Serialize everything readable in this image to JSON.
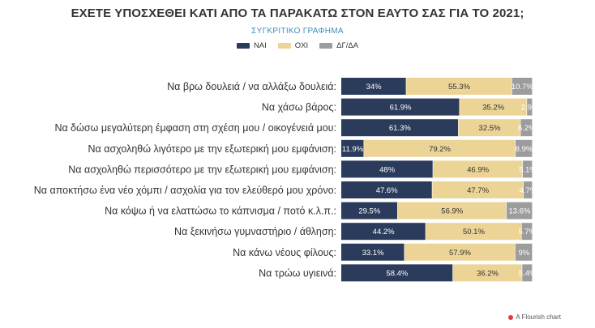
{
  "colors": {
    "yes": "#2b3b5c",
    "no": "#ecd497",
    "dk": "#9c9c9c"
  },
  "chart_data": {
    "type": "bar",
    "orientation": "horizontal",
    "stacked": true,
    "title": "ΕΧΕΤΕ ΥΠΟΣΧΕΘΕΙ ΚΑΤΙ ΑΠΟ ΤΑ ΠΑΡΑΚΑΤΩ ΣΤΟΝ ΕΑΥΤΟ ΣΑΣ ΓΙΑ ΤΟ 2021;",
    "subtitle": "ΣΥΓΚΡΙΤΙΚΟ ΓΡΑΦΗΜΑ",
    "xlim": [
      0,
      100
    ],
    "categories": [
      "Να βρω δουλειά / να αλλάξω δουλειά:",
      "Να χάσω βάρος:",
      "Να δώσω μεγαλύτερη έμφαση στη σχέση μου / οικογένειά μου:",
      "Να ασχοληθώ λιγότερο με την εξωτερική μου εμφάνιση:",
      "Να ασχοληθώ περισσότερο με την εξωτερική μου εμφάνιση:",
      "Να αποκτήσω ένα νέο χόμπι / ασχολία για τον ελεύθερό μου χρόνο:",
      "Να κόψω ή να ελαττώσω το κάπνισμα / ποτό κ.λ.π.:",
      "Να ξεκινήσω γυμναστήριο / άθληση:",
      "Να κάνω νέους φίλους:",
      "Να τρώω υγιεινά:"
    ],
    "series": [
      {
        "name": "ΝΑΙ",
        "key": "yes",
        "values": [
          34,
          61.9,
          61.3,
          11.9,
          48,
          47.6,
          29.5,
          44.2,
          33.1,
          58.4
        ],
        "labels": [
          "34%",
          "61.9%",
          "61.3%",
          "11.9%",
          "48%",
          "47.6%",
          "29.5%",
          "44.2%",
          "33.1%",
          "58.4%"
        ]
      },
      {
        "name": "ΟΧΙ",
        "key": "no",
        "values": [
          55.3,
          35.2,
          32.5,
          79.2,
          46.9,
          47.7,
          56.9,
          50.1,
          57.9,
          36.2
        ],
        "labels": [
          "55.3%",
          "35.2%",
          "32.5%",
          "79.2%",
          "46.9%",
          "47.7%",
          "56.9%",
          "50.1%",
          "57.9%",
          "36.2%"
        ]
      },
      {
        "name": "ΔΓ/ΔΑ",
        "key": "dk",
        "values": [
          10.7,
          2.9,
          6.2,
          8.9,
          5.1,
          4.7,
          13.6,
          5.7,
          9,
          5.4
        ],
        "labels": [
          "10.7%",
          "2.9%",
          "6.2%",
          "8.9%",
          "5.1%",
          "4.7%",
          "13.6%",
          "5.7%",
          "9%",
          "5.4%"
        ]
      }
    ],
    "legend": "top-center"
  },
  "footer": {
    "text": "A Flourish chart"
  }
}
